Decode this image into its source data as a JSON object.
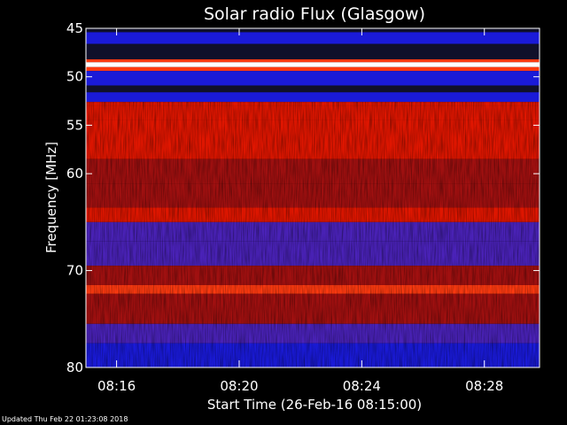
{
  "updated_text": "Updated Thu Feb 22 01:23:08 2018",
  "chart_data": {
    "type": "heatmap",
    "title": "Solar radio Flux (Glasgow)",
    "xlabel": "Start Time (26-Feb-16 08:15:00)",
    "ylabel": "Frequency [MHz]",
    "x_tick_labels": [
      "08:16",
      "08:20",
      "08:24",
      "08:28"
    ],
    "x_tick_minutes": [
      1,
      5,
      9,
      13
    ],
    "xlim_minutes": [
      0,
      14.8
    ],
    "y_tick_labels": [
      "45",
      "50",
      "55",
      "60",
      "70",
      "80"
    ],
    "y_tick_values": [
      45,
      50,
      55,
      60,
      70,
      80
    ],
    "ylim": [
      45,
      80
    ],
    "y_scale": "reversed",
    "colormap": [
      "#10102a",
      "#1a1ad8",
      "#4a22b8",
      "#a01010",
      "#e01600",
      "#ff3a10",
      "#ffd080",
      "#ffffff"
    ],
    "bands": [
      {
        "from": 45.0,
        "to": 45.4,
        "level": 0
      },
      {
        "from": 45.4,
        "to": 46.6,
        "level": 1
      },
      {
        "from": 46.6,
        "to": 48.2,
        "level": 0
      },
      {
        "from": 48.2,
        "to": 48.5,
        "level": 5
      },
      {
        "from": 48.5,
        "to": 49.0,
        "level": 7
      },
      {
        "from": 49.0,
        "to": 49.4,
        "level": 5
      },
      {
        "from": 49.4,
        "to": 50.9,
        "level": 1
      },
      {
        "from": 50.9,
        "to": 51.6,
        "level": 0
      },
      {
        "from": 51.6,
        "to": 52.6,
        "level": 1
      },
      {
        "from": 52.6,
        "to": 53.0,
        "level": 4
      },
      {
        "from": 53.0,
        "to": 54.5,
        "level": 4
      },
      {
        "from": 54.5,
        "to": 58.5,
        "level": 4
      },
      {
        "from": 58.5,
        "to": 61.0,
        "level": 3
      },
      {
        "from": 61.0,
        "to": 63.5,
        "level": 3
      },
      {
        "from": 63.5,
        "to": 65.0,
        "level": 4
      },
      {
        "from": 65.0,
        "to": 67.0,
        "level": 2
      },
      {
        "from": 67.0,
        "to": 69.5,
        "level": 2
      },
      {
        "from": 69.5,
        "to": 71.5,
        "level": 3
      },
      {
        "from": 71.5,
        "to": 72.4,
        "level": 5
      },
      {
        "from": 72.4,
        "to": 75.5,
        "level": 3
      },
      {
        "from": 75.5,
        "to": 77.5,
        "level": 2
      },
      {
        "from": 77.5,
        "to": 80.0,
        "level": 1
      }
    ]
  }
}
